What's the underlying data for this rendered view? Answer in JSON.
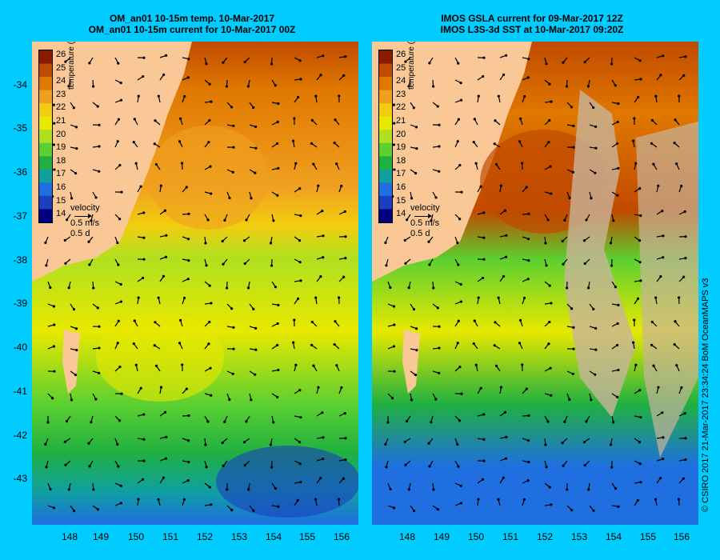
{
  "left_panel": {
    "title_line1": "OM_an01 10-15m temp. 10-Mar-2017",
    "title_line2": "OM_an01 10-15m current for 10-Mar-2017 00Z"
  },
  "right_panel": {
    "title_line1": "IMOS GSLA current for 09-Mar-2017 12Z",
    "title_line2": "IMOS L3S-3d SST at 10-Mar-2017 09:20Z"
  },
  "colorbar": {
    "title": "temperature (°C)",
    "ticks": [
      "26",
      "25",
      "24",
      "23",
      "22",
      "21",
      "20",
      "19",
      "18",
      "17",
      "16",
      "15",
      "14"
    ],
    "colors": [
      "#8b1a00",
      "#c04a00",
      "#e07800",
      "#f0a020",
      "#f2cc10",
      "#e8e800",
      "#b0e020",
      "#5cd030",
      "#20b040",
      "#10a0a0",
      "#1f6fe0",
      "#1a40c0",
      "#000080"
    ]
  },
  "velocity_legend": {
    "label": "velocity",
    "speed": "0.5 m/s",
    "time": "0.5 d"
  },
  "y_axis_labels": [
    "-34",
    "-35",
    "-36",
    "-37",
    "-38",
    "-39",
    "-40",
    "-41",
    "-42",
    "-43"
  ],
  "x_axis_labels": [
    "148",
    "149",
    "150",
    "151",
    "152",
    "153",
    "154",
    "155",
    "156"
  ],
  "credit": "© CSIRO 2017   21-Mar-2017 23:34:24 BoM OceanMAPS v3",
  "colors": {
    "background": "#00ccff",
    "land": "#f9c896",
    "cloud_mask": "#c8b49a"
  }
}
